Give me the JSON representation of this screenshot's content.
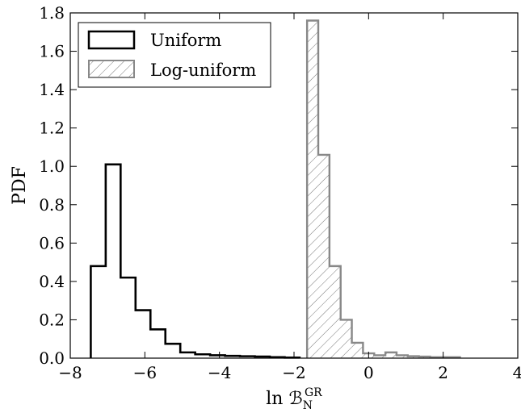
{
  "chart_data": {
    "type": "bar",
    "subtype": "step-histogram",
    "xlabel": "ln ℬ",
    "xlabel_sub": "N",
    "xlabel_sup": "GR",
    "ylabel": "PDF",
    "xlim": [
      -8,
      4
    ],
    "ylim": [
      0,
      1.8
    ],
    "x_ticks": [
      -8,
      -6,
      -4,
      -2,
      0,
      2,
      4
    ],
    "x_tick_labels": [
      "−8",
      "−6",
      "−4",
      "−2",
      "0",
      "2",
      "4"
    ],
    "y_ticks": [
      0.0,
      0.2,
      0.4,
      0.6,
      0.8,
      1.0,
      1.2,
      1.4,
      1.6,
      1.8
    ],
    "y_tick_labels": [
      "0.0",
      "0.2",
      "0.4",
      "0.6",
      "0.8",
      "1.0",
      "1.2",
      "1.4",
      "1.6",
      "1.8"
    ],
    "grid": false,
    "legend_position": "top-left",
    "series": [
      {
        "name": "Uniform",
        "style": "step",
        "color": "#000000",
        "bin_edges": [
          -7.45,
          -7.05,
          -6.65,
          -6.25,
          -5.85,
          -5.45,
          -5.05,
          -4.65,
          -4.25,
          -3.85,
          -3.45,
          -3.05,
          -2.65,
          -2.25,
          -1.85
        ],
        "values": [
          0.48,
          1.01,
          0.42,
          0.25,
          0.15,
          0.075,
          0.03,
          0.02,
          0.015,
          0.012,
          0.01,
          0.008,
          0.005,
          0.003
        ]
      },
      {
        "name": "Log-uniform",
        "style": "hatched",
        "color": "#888888",
        "bin_edges": [
          -1.65,
          -1.35,
          -1.05,
          -0.75,
          -0.45,
          -0.15,
          0.15,
          0.45,
          0.75,
          1.05,
          1.35,
          1.65,
          1.95,
          2.25,
          2.45
        ],
        "values": [
          1.76,
          1.06,
          0.48,
          0.2,
          0.08,
          0.025,
          0.015,
          0.03,
          0.015,
          0.01,
          0.008,
          0.005,
          0.005,
          0.005
        ]
      }
    ]
  }
}
